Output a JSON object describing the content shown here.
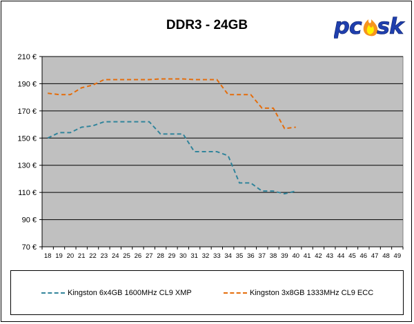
{
  "chart_data": {
    "type": "line",
    "title": "DDR3 - 24GB",
    "xlabel": "",
    "ylabel": "",
    "x": [
      18,
      19,
      20,
      21,
      22,
      23,
      24,
      25,
      26,
      27,
      28,
      29,
      30,
      31,
      32,
      33,
      34,
      35,
      36,
      37,
      38,
      39,
      40,
      41,
      42,
      43,
      44,
      45,
      46,
      47,
      48,
      49
    ],
    "ylim": [
      70,
      210
    ],
    "yticks": [
      70,
      90,
      110,
      130,
      150,
      170,
      190,
      210
    ],
    "ytick_labels": [
      "70 €",
      "90 €",
      "110 €",
      "130 €",
      "150 €",
      "170 €",
      "190 €",
      "210 €"
    ],
    "grid": "horizontal",
    "legend": "bottom",
    "background": "#c0c0c0",
    "series": [
      {
        "name": "Kingston 6x4GB 1600MHz CL9 XMP",
        "color": "#31849b",
        "x": [
          18,
          19,
          20,
          21,
          22,
          23,
          24,
          25,
          26,
          27,
          28,
          29,
          30,
          31,
          32,
          33,
          34,
          35,
          36,
          37,
          38,
          39,
          40
        ],
        "values": [
          150,
          154,
          154,
          158,
          159,
          162,
          162,
          162,
          162,
          162,
          153,
          153,
          153,
          140,
          140,
          140,
          137,
          117,
          117,
          111,
          111,
          109,
          111
        ]
      },
      {
        "name": "Kingston 3x8GB 1333MHz CL9 ECC",
        "color": "#e46c0a",
        "x": [
          18,
          19,
          20,
          21,
          22,
          23,
          24,
          25,
          26,
          27,
          28,
          29,
          30,
          31,
          32,
          33,
          34,
          35,
          36,
          37,
          38,
          39,
          40
        ],
        "values": [
          183,
          182,
          182,
          187,
          189,
          193,
          193,
          193,
          193,
          193,
          193.5,
          193.5,
          193.5,
          193,
          193,
          193,
          182,
          182,
          182,
          172,
          172,
          157,
          158
        ]
      }
    ]
  },
  "logo": {
    "text": "pcosk",
    "colors": {
      "p": "#1f3fae",
      "flame_outer": "#f7941d",
      "flame_inner": "#fff200"
    }
  }
}
